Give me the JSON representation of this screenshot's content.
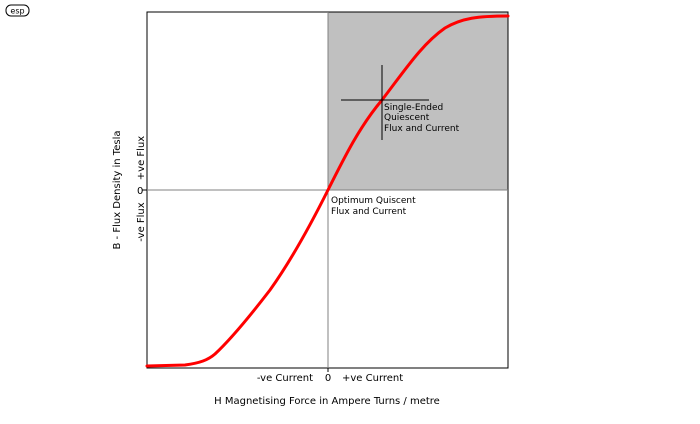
{
  "logo_text": "esp",
  "labels": {
    "y_axis_title": "B - Flux Density in Tesla",
    "y_positive": "+ve Flux",
    "y_negative": "-ve Flux",
    "x_axis_title": "H   Magnetising Force in Ampere  Turns / metre",
    "x_negative": "-ve Current",
    "x_positive": "+ve Current",
    "x_zero": "0",
    "y_zero": "0"
  },
  "annotations": {
    "single_ended": [
      "Single-Ended",
      "Quiescent",
      "Flux and Current"
    ],
    "optimum": [
      "Optimum Quiscent",
      "Flux and Current"
    ]
  },
  "colors": {
    "curve": "#ff0000",
    "shaded_quadrant": "#c0c0c0",
    "frame": "#000000",
    "axis_lines": "#808080"
  }
}
